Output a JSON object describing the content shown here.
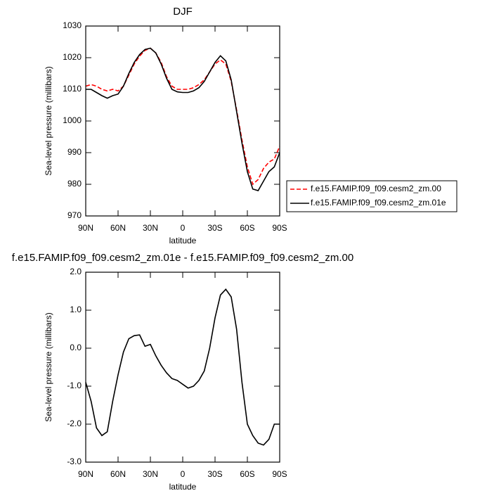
{
  "chart_data": [
    {
      "type": "line",
      "title": "DJF",
      "xlabel": "latitude",
      "ylabel": "Sea-level pressure (millibars)",
      "x": [
        90,
        85,
        80,
        75,
        70,
        65,
        60,
        55,
        50,
        45,
        40,
        35,
        30,
        25,
        20,
        15,
        10,
        5,
        0,
        -5,
        -10,
        -15,
        -20,
        -25,
        -30,
        -35,
        -40,
        -45,
        -50,
        -55,
        -60,
        -65,
        -70,
        -75,
        -80,
        -85,
        -90
      ],
      "xlim": [
        90,
        -90
      ],
      "xticks": [
        {
          "value": 90,
          "label": "90N"
        },
        {
          "value": 60,
          "label": "60N"
        },
        {
          "value": 30,
          "label": "30N"
        },
        0,
        {
          "value": -30,
          "label": "30S"
        },
        {
          "value": -60,
          "label": "60S"
        },
        {
          "value": -90,
          "label": "90S"
        }
      ],
      "ylim": [
        970,
        1030
      ],
      "yticks": [
        970,
        980,
        990,
        1000,
        1010,
        1020,
        1030
      ],
      "legend": "right",
      "series": [
        {
          "name": "f.e15.FAMIP.f09_f09.cesm2_zm.00",
          "color": "#ff0000",
          "dash": "dashed",
          "values": [
            1011,
            1011.5,
            1011,
            1010,
            1009.5,
            1010,
            1009.5,
            1011,
            1014.5,
            1018,
            1020.5,
            1022.3,
            1023,
            1021.5,
            1018.5,
            1014,
            1011,
            1010,
            1010,
            1010,
            1010.5,
            1011.5,
            1013,
            1015.5,
            1018,
            1019.3,
            1018,
            1012.5,
            1003.5,
            994,
            985.5,
            980,
            981.5,
            985,
            987,
            988,
            992
          ]
        },
        {
          "name": "f.e15.FAMIP.f09_f09.cesm2_zm.01e",
          "color": "#000000",
          "dash": "solid",
          "values": [
            1010,
            1010,
            1009,
            1008,
            1007.2,
            1008,
            1008.5,
            1011,
            1015,
            1018.5,
            1021,
            1022.6,
            1023,
            1021.5,
            1018,
            1013.5,
            1010,
            1009.2,
            1009,
            1009,
            1009.5,
            1010.5,
            1012.5,
            1015.5,
            1018.5,
            1020.6,
            1019,
            1013,
            1003,
            993,
            984,
            978.5,
            978,
            981,
            984,
            985.5,
            990
          ]
        }
      ]
    },
    {
      "type": "line",
      "title": "f.e15.FAMIP.f09_f09.cesm2_zm.01e - f.e15.FAMIP.f09_f09.cesm2_zm.00",
      "xlabel": "latitude",
      "ylabel": "Sea-level pressure (millibars)",
      "x": [
        90,
        85,
        80,
        75,
        70,
        65,
        60,
        55,
        50,
        45,
        40,
        35,
        30,
        25,
        20,
        15,
        10,
        5,
        0,
        -5,
        -10,
        -15,
        -20,
        -25,
        -30,
        -35,
        -40,
        -45,
        -50,
        -55,
        -60,
        -65,
        -70,
        -75,
        -80,
        -85,
        -90
      ],
      "xlim": [
        90,
        -90
      ],
      "xticks": [
        {
          "value": 90,
          "label": "90N"
        },
        {
          "value": 60,
          "label": "60N"
        },
        {
          "value": 30,
          "label": "30N"
        },
        0,
        {
          "value": -30,
          "label": "30S"
        },
        {
          "value": -60,
          "label": "60S"
        },
        {
          "value": -90,
          "label": "90S"
        }
      ],
      "ylim": [
        -3,
        2
      ],
      "yticks": [
        {
          "value": -3,
          "label": "-3.0"
        },
        {
          "value": -2,
          "label": "-2.0"
        },
        {
          "value": -1,
          "label": "-1.0"
        },
        {
          "value": 0,
          "label": "0.0"
        },
        {
          "value": 1,
          "label": "1.0"
        },
        {
          "value": 2,
          "label": "2.0"
        }
      ],
      "series": [
        {
          "color": "#000000",
          "dash": "solid",
          "values": [
            -0.9,
            -1.4,
            -2.1,
            -2.3,
            -2.2,
            -1.4,
            -0.7,
            -0.1,
            0.25,
            0.33,
            0.35,
            0.05,
            0.1,
            -0.2,
            -0.45,
            -0.65,
            -0.8,
            -0.85,
            -0.95,
            -1.05,
            -1.0,
            -0.85,
            -0.6,
            0.0,
            0.8,
            1.4,
            1.55,
            1.35,
            0.5,
            -0.9,
            -2.0,
            -2.3,
            -2.5,
            -2.55,
            -2.4,
            -2.0,
            -2.0
          ]
        }
      ]
    }
  ]
}
